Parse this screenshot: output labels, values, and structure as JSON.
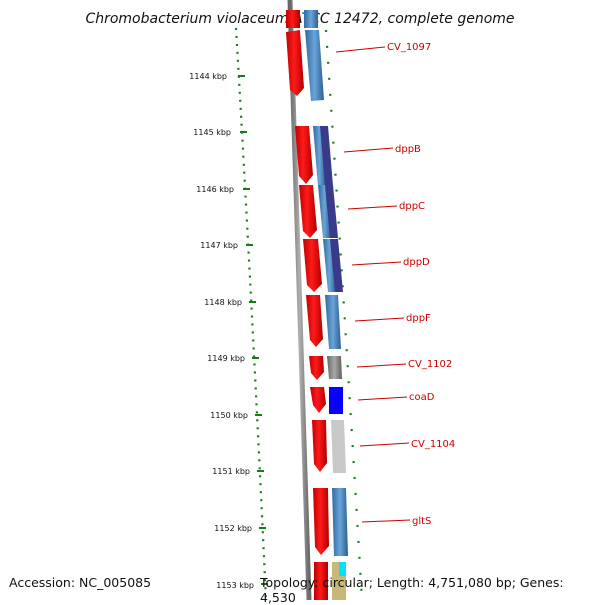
{
  "title": "Chromobacterium violaceum ATCC 12472, complete genome",
  "footer": {
    "accession": "Accession: NC_005085",
    "topology": "Topology: circular; Length: 4,751,080 bp; Genes: 4,530"
  },
  "colors": {
    "forward_strand": "#ff0000",
    "reverse_strand": "#4a86c0",
    "dark_purple": "#3a3a8a",
    "grey": "#666666",
    "blue": "#0a00ff",
    "light_grey": "#c8c8c8",
    "cyan": "#00e0ff",
    "tan": "#c8b878",
    "tick": "#1a7a1a",
    "label": "#cc0000",
    "backbone": "#8c8c8c"
  },
  "ruler": {
    "unit": "kbp",
    "ticks": [
      "1144 kbp",
      "1145 kbp",
      "1146 kbp",
      "1147 kbp",
      "1148 kbp",
      "1149 kbp",
      "1150 kbp",
      "1151 kbp",
      "1152 kbp",
      "1153 kbp"
    ]
  },
  "genes": [
    {
      "name": "CV_1097"
    },
    {
      "name": "dppB"
    },
    {
      "name": "dppC"
    },
    {
      "name": "dppD"
    },
    {
      "name": "dppF"
    },
    {
      "name": "CV_1102"
    },
    {
      "name": "coaD"
    },
    {
      "name": "CV_1104"
    },
    {
      "name": "gltS"
    }
  ]
}
